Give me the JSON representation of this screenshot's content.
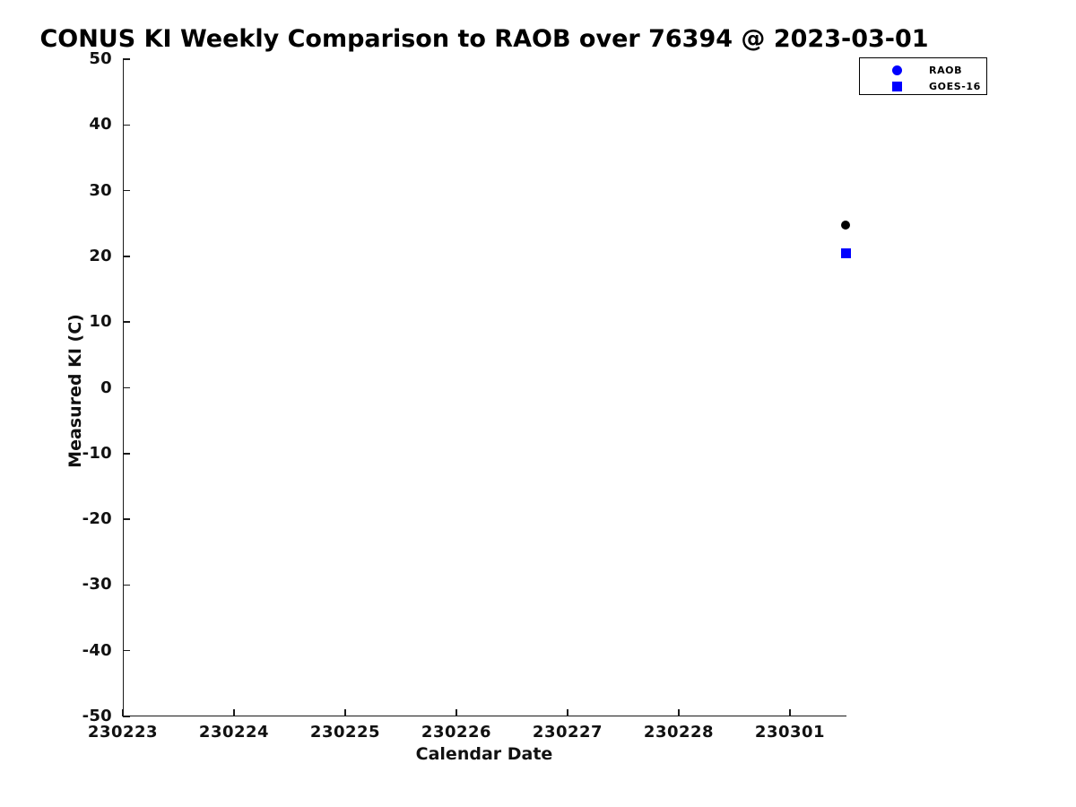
{
  "chart_data": {
    "type": "scatter",
    "title": "CONUS KI Weekly Comparison to RAOB over 76394 @ 2023-03-01",
    "xlabel": "Calendar Date",
    "ylabel": "Measured KI (C)",
    "x_tick_labels": [
      "230223",
      "230224",
      "230225",
      "230226",
      "230227",
      "230228",
      "230301"
    ],
    "x_tick_positions": [
      0,
      1,
      2,
      3,
      4,
      5,
      6
    ],
    "x_range": [
      0,
      6.5
    ],
    "ylim": [
      -50,
      50
    ],
    "y_ticks": [
      50,
      40,
      30,
      20,
      10,
      0,
      -10,
      -20,
      -30,
      -40,
      -50
    ],
    "grid": false,
    "legend": {
      "position": "top-right",
      "entries": [
        {
          "label": "RAOB",
          "marker": "circle",
          "color": "#0000FF"
        },
        {
          "label": "GOES-16",
          "marker": "square",
          "color": "#0000FF"
        }
      ]
    },
    "series": [
      {
        "name": "RAOB",
        "marker": "circle",
        "color": "#000000",
        "points": [
          {
            "x": 6.5,
            "y": 24.8
          }
        ]
      },
      {
        "name": "GOES-16",
        "marker": "square",
        "color": "#0000FF",
        "points": [
          {
            "x": 6.5,
            "y": 20.4
          }
        ]
      }
    ]
  },
  "colors": {
    "background": "#ffffff",
    "axis": "#1a1a1a",
    "text": "#111111",
    "blue": "#0000FF",
    "black_marker": "#000000"
  }
}
